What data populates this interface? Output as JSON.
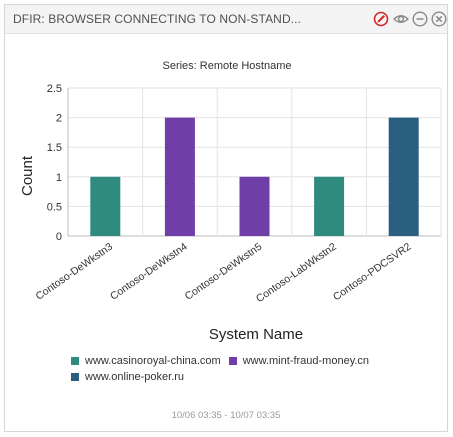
{
  "widget": {
    "title": "DFIR: BROWSER CONNECTING TO NON-STAND...",
    "time_range": "10/06 03:35 - 10/07 03:35"
  },
  "icons": {
    "edit": "edit-pencil-icon",
    "view": "eye-icon",
    "minimize": "minimize-circle-icon",
    "close": "close-circle-icon"
  },
  "chart_data": {
    "type": "bar",
    "title": "Series: Remote Hostname",
    "xlabel": "System Name",
    "ylabel": "Count",
    "ylim": [
      0,
      2.5
    ],
    "yticks": [
      "0",
      "0.5",
      "1",
      "1.5",
      "2",
      "2.5"
    ],
    "categories": [
      "Contoso-DeWkstn3",
      "Contoso-DeWkstn4",
      "Contoso-DeWkstn5",
      "Contoso-LabWkstn2",
      "Contoso-PDCSVR2"
    ],
    "series": [
      {
        "name": "www.casinoroyal-china.com",
        "color": "#2e8b7d",
        "values": [
          1,
          null,
          null,
          1,
          null
        ]
      },
      {
        "name": "www.mint-fraud-money.cn",
        "color": "#6f3ea6",
        "values": [
          null,
          2,
          1,
          null,
          null
        ]
      },
      {
        "name": "www.online-poker.ru",
        "color": "#2b5f80",
        "values": [
          null,
          null,
          null,
          null,
          2
        ]
      }
    ],
    "grid": true,
    "legend_position": "bottom"
  }
}
